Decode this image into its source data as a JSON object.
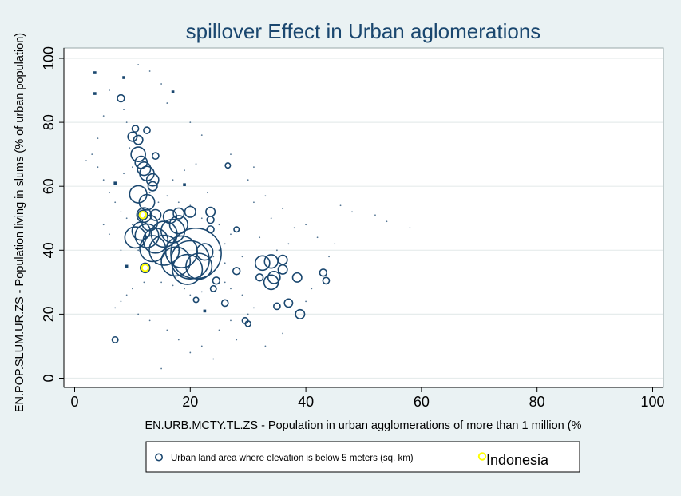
{
  "chart_data": {
    "type": "scatter",
    "title": "spillover Effect  in Urban aglomerations",
    "xlabel": "EN.URB.MCTY.TL.ZS - Population in urban agglomerations of more than 1 million (%",
    "ylabel": "EN.POP.SLUM.UR.ZS - Population living in slums (% of urban population)",
    "xlim": [
      0,
      100
    ],
    "ylim": [
      0,
      100
    ],
    "x_ticks": [
      0,
      20,
      40,
      60,
      80,
      100
    ],
    "y_ticks": [
      0,
      20,
      40,
      60,
      80,
      100
    ],
    "grid": "horizontal",
    "legend_position": "bottom",
    "colors": {
      "series": "#1a476f",
      "highlight": "#ffff00",
      "plot_bg": "#ffffff",
      "page_bg": "#eaf2f3"
    },
    "series": [
      {
        "name": "Urban land area where elevation is below 5 meters (sq. km)",
        "marker": "hollow-circle-weighted",
        "points": [
          {
            "x": 3.5,
            "y": 95.5,
            "w": 0.3
          },
          {
            "x": 3.5,
            "y": 89,
            "w": 0.3
          },
          {
            "x": 8,
            "y": 87.5,
            "w": 1
          },
          {
            "x": 8.5,
            "y": 94,
            "w": 0.2
          },
          {
            "x": 17,
            "y": 89.5,
            "w": 0.2
          },
          {
            "x": 10.5,
            "y": 78,
            "w": 0.8
          },
          {
            "x": 12.5,
            "y": 77.5,
            "w": 0.8
          },
          {
            "x": 10,
            "y": 75.5,
            "w": 2
          },
          {
            "x": 11,
            "y": 74.5,
            "w": 2
          },
          {
            "x": 7,
            "y": 61,
            "w": 0.3
          },
          {
            "x": 11,
            "y": 70,
            "w": 6
          },
          {
            "x": 11.5,
            "y": 67.5,
            "w": 4
          },
          {
            "x": 12,
            "y": 65.5,
            "w": 5
          },
          {
            "x": 12.5,
            "y": 64,
            "w": 6
          },
          {
            "x": 13.5,
            "y": 62,
            "w": 4
          },
          {
            "x": 14,
            "y": 69.5,
            "w": 0.8
          },
          {
            "x": 13.5,
            "y": 60,
            "w": 2
          },
          {
            "x": 11,
            "y": 57.5,
            "w": 9
          },
          {
            "x": 12.5,
            "y": 55,
            "w": 7
          },
          {
            "x": 12,
            "y": 51,
            "w": 6
          },
          {
            "x": 14,
            "y": 51,
            "w": 3
          },
          {
            "x": 13,
            "y": 48.5,
            "w": 7
          },
          {
            "x": 11.5,
            "y": 46,
            "w": 10
          },
          {
            "x": 10.5,
            "y": 44,
            "w": 14
          },
          {
            "x": 12.5,
            "y": 44.5,
            "w": 18
          },
          {
            "x": 14,
            "y": 43,
            "w": 20
          },
          {
            "x": 15.5,
            "y": 45,
            "w": 22
          },
          {
            "x": 17,
            "y": 46,
            "w": 18
          },
          {
            "x": 13.5,
            "y": 40.5,
            "w": 22
          },
          {
            "x": 15.5,
            "y": 40,
            "w": 30
          },
          {
            "x": 18.5,
            "y": 39.5,
            "w": 34
          },
          {
            "x": 21,
            "y": 39,
            "w": 90
          },
          {
            "x": 20,
            "y": 37,
            "w": 50
          },
          {
            "x": 17.5,
            "y": 36.5,
            "w": 28
          },
          {
            "x": 19.5,
            "y": 34,
            "w": 30
          },
          {
            "x": 21.5,
            "y": 35,
            "w": 22
          },
          {
            "x": 22.5,
            "y": 39.5,
            "w": 8
          },
          {
            "x": 18,
            "y": 48,
            "w": 10
          },
          {
            "x": 16.5,
            "y": 50.5,
            "w": 5
          },
          {
            "x": 18,
            "y": 51.5,
            "w": 3
          },
          {
            "x": 20,
            "y": 52,
            "w": 3
          },
          {
            "x": 23.5,
            "y": 52,
            "w": 2
          },
          {
            "x": 23.5,
            "y": 49.5,
            "w": 1
          },
          {
            "x": 23.5,
            "y": 46.5,
            "w": 1
          },
          {
            "x": 26.5,
            "y": 66.5,
            "w": 0.4
          },
          {
            "x": 28,
            "y": 46.5,
            "w": 0.4
          },
          {
            "x": 24.5,
            "y": 30.5,
            "w": 1
          },
          {
            "x": 24,
            "y": 28,
            "w": 0.6
          },
          {
            "x": 21,
            "y": 24.5,
            "w": 0.4
          },
          {
            "x": 26,
            "y": 23.5,
            "w": 0.8
          },
          {
            "x": 28,
            "y": 33.5,
            "w": 1
          },
          {
            "x": 29.5,
            "y": 18,
            "w": 0.6
          },
          {
            "x": 30,
            "y": 17,
            "w": 0.5
          },
          {
            "x": 32.5,
            "y": 36,
            "w": 6
          },
          {
            "x": 34,
            "y": 36.5,
            "w": 5
          },
          {
            "x": 32,
            "y": 31.5,
            "w": 1
          },
          {
            "x": 34,
            "y": 30,
            "w": 6
          },
          {
            "x": 34.5,
            "y": 31.5,
            "w": 4
          },
          {
            "x": 36,
            "y": 34,
            "w": 2
          },
          {
            "x": 36,
            "y": 37,
            "w": 2
          },
          {
            "x": 35,
            "y": 22.5,
            "w": 0.8
          },
          {
            "x": 37,
            "y": 23.5,
            "w": 1.5
          },
          {
            "x": 38.5,
            "y": 31.5,
            "w": 2
          },
          {
            "x": 39,
            "y": 20,
            "w": 2
          },
          {
            "x": 43,
            "y": 33,
            "w": 1
          },
          {
            "x": 43.5,
            "y": 30.5,
            "w": 0.8
          },
          {
            "x": 7,
            "y": 12,
            "w": 0.6
          },
          {
            "x": 22.5,
            "y": 21,
            "w": 0.2
          },
          {
            "x": 9,
            "y": 35,
            "w": 0.2
          },
          {
            "x": 19,
            "y": 60.5,
            "w": 0.2
          }
        ]
      },
      {
        "name": "Indonesia",
        "marker": "yellow-circle",
        "points": [
          {
            "x": 11.8,
            "y": 51,
            "w": 1.5
          },
          {
            "x": 12.2,
            "y": 34.5,
            "w": 1.5
          }
        ]
      }
    ],
    "background_dots": [
      [
        3,
        70
      ],
      [
        4,
        66
      ],
      [
        5,
        62
      ],
      [
        6,
        58
      ],
      [
        7,
        55
      ],
      [
        8,
        52
      ],
      [
        9,
        50
      ],
      [
        8.5,
        64
      ],
      [
        9.5,
        72
      ],
      [
        9,
        80
      ],
      [
        8.5,
        84
      ],
      [
        10,
        66
      ],
      [
        13,
        58
      ],
      [
        14.5,
        55
      ],
      [
        16,
        57
      ],
      [
        18,
        55
      ],
      [
        20,
        54
      ],
      [
        22,
        50
      ],
      [
        25,
        48
      ],
      [
        27,
        45
      ],
      [
        26,
        42
      ],
      [
        25,
        40
      ],
      [
        24,
        38
      ],
      [
        26,
        30
      ],
      [
        27,
        28
      ],
      [
        29,
        26
      ],
      [
        22,
        27
      ],
      [
        20,
        26
      ],
      [
        19,
        28
      ],
      [
        17,
        29
      ],
      [
        15,
        30
      ],
      [
        12,
        30
      ],
      [
        10,
        28
      ],
      [
        9,
        26
      ],
      [
        8,
        24
      ],
      [
        7,
        22
      ],
      [
        11,
        20
      ],
      [
        13,
        18
      ],
      [
        16,
        15
      ],
      [
        18,
        12
      ],
      [
        20,
        8
      ],
      [
        22,
        10
      ],
      [
        25,
        15
      ],
      [
        28,
        12
      ],
      [
        33,
        10
      ],
      [
        36,
        14
      ],
      [
        40,
        24
      ],
      [
        41,
        28
      ],
      [
        44,
        38
      ],
      [
        45,
        42
      ],
      [
        42,
        44
      ],
      [
        38,
        47
      ],
      [
        34,
        50
      ],
      [
        31,
        55
      ],
      [
        33,
        57
      ],
      [
        36,
        53
      ],
      [
        40,
        48
      ],
      [
        46,
        54
      ],
      [
        52,
        51
      ],
      [
        54,
        49
      ],
      [
        58,
        47
      ],
      [
        48,
        52
      ],
      [
        30,
        62
      ],
      [
        31,
        66
      ],
      [
        27,
        70
      ],
      [
        22,
        76
      ],
      [
        20,
        80
      ],
      [
        16,
        86
      ],
      [
        15,
        92
      ],
      [
        13,
        96
      ],
      [
        11,
        98
      ],
      [
        6,
        90
      ],
      [
        5,
        82
      ],
      [
        4,
        75
      ],
      [
        2,
        68
      ],
      [
        14,
        36
      ],
      [
        16,
        38
      ],
      [
        18,
        40
      ],
      [
        11,
        40
      ],
      [
        10,
        48
      ],
      [
        17,
        62
      ],
      [
        19,
        65
      ],
      [
        21,
        67
      ],
      [
        23,
        58
      ],
      [
        35,
        40
      ],
      [
        37,
        42
      ],
      [
        32,
        44
      ],
      [
        30,
        20
      ],
      [
        31,
        22
      ],
      [
        27,
        18
      ],
      [
        24,
        6
      ],
      [
        15,
        3
      ],
      [
        26,
        36
      ],
      [
        29,
        38
      ],
      [
        21,
        32
      ],
      [
        8,
        40
      ],
      [
        6,
        45
      ],
      [
        5,
        48
      ]
    ]
  },
  "legend": {
    "items": [
      {
        "label": "Urban land area where elevation is below 5 meters (sq. km)"
      },
      {
        "label": "Indonesia"
      }
    ]
  }
}
